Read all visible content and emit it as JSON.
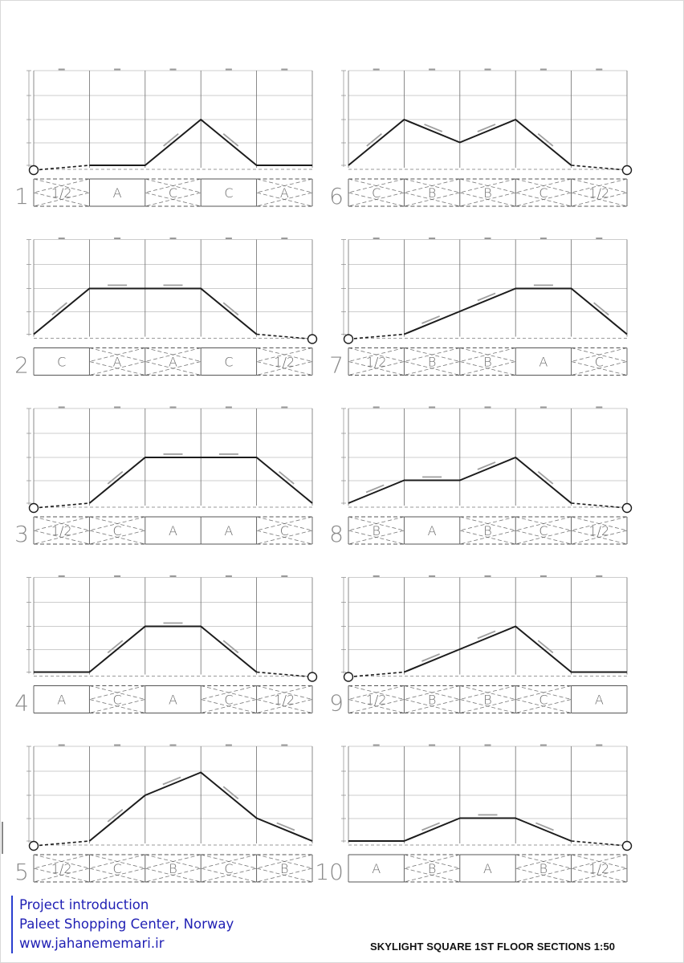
{
  "sheet_title": "SKYLIGHT SQUARE 1ST FLOOR SECTIONS 1:50",
  "credit": {
    "line1": "Project introduction",
    "line2": "Paleet Shopping Center, Norway",
    "line3": "www.jahanememari.ir"
  },
  "colors": {
    "ink": "#1c1c1c",
    "grid": "#9a9a9a",
    "credit": "#1f1fb4"
  },
  "sections": [
    {
      "number": "1",
      "profile": [
        0,
        0,
        0,
        2,
        0,
        0
      ],
      "drain": "left",
      "panels": [
        {
          "label": "1/2",
          "type": "dashed"
        },
        {
          "label": "A",
          "type": "solid"
        },
        {
          "label": "C",
          "type": "dashed"
        },
        {
          "label": "C",
          "type": "solid"
        },
        {
          "label": "A",
          "type": "dashed"
        }
      ]
    },
    {
      "number": "2",
      "profile": [
        0,
        2,
        2,
        2,
        0,
        0
      ],
      "drain": "right",
      "panels": [
        {
          "label": "C",
          "type": "solid"
        },
        {
          "label": "A",
          "type": "dashed"
        },
        {
          "label": "A",
          "type": "dashed"
        },
        {
          "label": "C",
          "type": "solid"
        },
        {
          "label": "1/2",
          "type": "dashed"
        }
      ]
    },
    {
      "number": "3",
      "profile": [
        0,
        0,
        2,
        2,
        2,
        0
      ],
      "drain": "left",
      "panels": [
        {
          "label": "1/2",
          "type": "dashed"
        },
        {
          "label": "C",
          "type": "dashed"
        },
        {
          "label": "A",
          "type": "solid"
        },
        {
          "label": "A",
          "type": "solid"
        },
        {
          "label": "C",
          "type": "dashed"
        }
      ]
    },
    {
      "number": "4",
      "profile": [
        0,
        0,
        2,
        2,
        0,
        0
      ],
      "drain": "right",
      "panels": [
        {
          "label": "A",
          "type": "solid"
        },
        {
          "label": "C",
          "type": "dashed"
        },
        {
          "label": "A",
          "type": "solid"
        },
        {
          "label": "C",
          "type": "dashed"
        },
        {
          "label": "1/2",
          "type": "dashed"
        }
      ]
    },
    {
      "number": "5",
      "profile": [
        0,
        0,
        2,
        3,
        1,
        0
      ],
      "drain": "left",
      "panels": [
        {
          "label": "1/2",
          "type": "dashed"
        },
        {
          "label": "C",
          "type": "dashed"
        },
        {
          "label": "B",
          "type": "dashed"
        },
        {
          "label": "C",
          "type": "dashed"
        },
        {
          "label": "B",
          "type": "dashed"
        }
      ]
    },
    {
      "number": "6",
      "profile": [
        0,
        2,
        1,
        2,
        0,
        0
      ],
      "drain": "right",
      "panels": [
        {
          "label": "C",
          "type": "dashed"
        },
        {
          "label": "B",
          "type": "dashed"
        },
        {
          "label": "B",
          "type": "dashed"
        },
        {
          "label": "C",
          "type": "dashed"
        },
        {
          "label": "1/2",
          "type": "dashed"
        }
      ]
    },
    {
      "number": "7",
      "profile": [
        0,
        0,
        1,
        2,
        2,
        0
      ],
      "drain": "left",
      "panels": [
        {
          "label": "1/2",
          "type": "dashed"
        },
        {
          "label": "B",
          "type": "dashed"
        },
        {
          "label": "B",
          "type": "dashed"
        },
        {
          "label": "A",
          "type": "solid"
        },
        {
          "label": "C",
          "type": "dashed"
        }
      ]
    },
    {
      "number": "8",
      "profile": [
        0,
        1,
        1,
        2,
        0,
        0
      ],
      "drain": "right",
      "panels": [
        {
          "label": "B",
          "type": "dashed"
        },
        {
          "label": "A",
          "type": "solid"
        },
        {
          "label": "B",
          "type": "dashed"
        },
        {
          "label": "C",
          "type": "dashed"
        },
        {
          "label": "1/2",
          "type": "dashed"
        }
      ]
    },
    {
      "number": "9",
      "profile": [
        0,
        0,
        1,
        2,
        0,
        0
      ],
      "drain": "left",
      "panels": [
        {
          "label": "1/2",
          "type": "dashed"
        },
        {
          "label": "B",
          "type": "dashed"
        },
        {
          "label": "B",
          "type": "dashed"
        },
        {
          "label": "C",
          "type": "dashed"
        },
        {
          "label": "A",
          "type": "solid"
        }
      ]
    },
    {
      "number": "10",
      "profile": [
        0,
        0,
        1,
        1,
        0,
        0
      ],
      "drain": "right",
      "panels": [
        {
          "label": "A",
          "type": "solid"
        },
        {
          "label": "B",
          "type": "dashed"
        },
        {
          "label": "A",
          "type": "solid"
        },
        {
          "label": "B",
          "type": "dashed"
        },
        {
          "label": "1/2",
          "type": "dashed"
        }
      ]
    }
  ]
}
